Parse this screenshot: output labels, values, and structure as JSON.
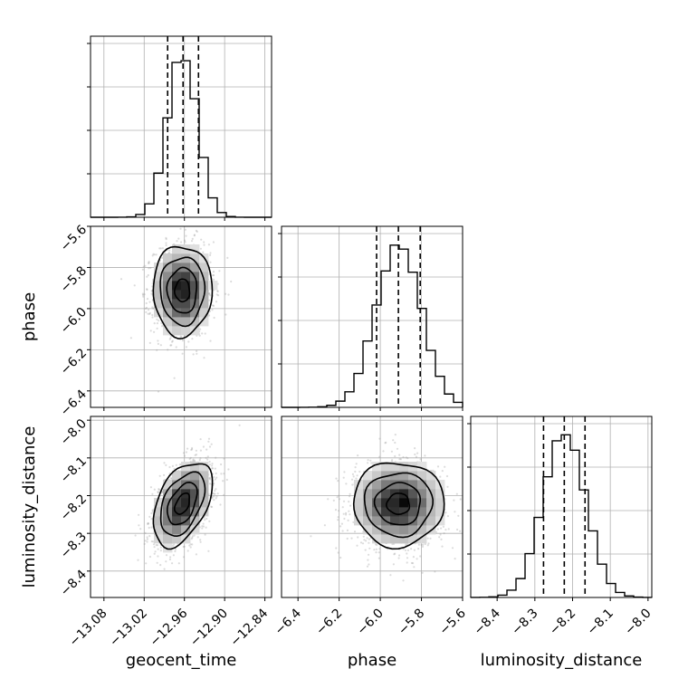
{
  "chart_data": {
    "type": "corner",
    "parameters": [
      {
        "key": "geocent_time",
        "label": "geocent_time",
        "mean": -12.963,
        "sd": 0.022,
        "range": [
          -13.1,
          -12.83
        ],
        "ticks": [
          -13.08,
          -13.02,
          -12.96,
          -12.9,
          -12.84
        ],
        "tick_labels": [
          "−13.08",
          "−13.02",
          "−12.96",
          "−12.90",
          "−12.84"
        ],
        "quantiles": [
          -12.985,
          -12.962,
          -12.939
        ]
      },
      {
        "key": "phase",
        "label": "phase",
        "mean": -5.912,
        "sd": 0.11,
        "range": [
          -6.48,
          -5.6
        ],
        "ticks": [
          -6.4,
          -6.2,
          -6.0,
          -5.8,
          -5.6
        ],
        "tick_labels": [
          "−6.4",
          "−6.2",
          "−6.0",
          "−5.8",
          "−5.6"
        ],
        "quantiles": [
          -6.018,
          -5.912,
          -5.806
        ]
      },
      {
        "key": "luminosity_distance",
        "label": "luminosity_distance",
        "mean": -8.222,
        "sd": 0.056,
        "range": [
          -8.47,
          -7.99
        ],
        "ticks": [
          -8.4,
          -8.3,
          -8.2,
          -8.1,
          -8.0
        ],
        "tick_labels": [
          "−8.4",
          "−8.3",
          "−8.2",
          "−8.1",
          "−8.0"
        ],
        "quantiles": [
          -8.277,
          -8.222,
          -8.167
        ]
      }
    ],
    "correlations": {
      "geocent_time|phase": 0.0,
      "geocent_time|luminosity_distance": 0.45,
      "phase|luminosity_distance": 0.0
    },
    "diag_bins": 20,
    "contour_levels_sigma": [
      0.5,
      1.0,
      1.5,
      2.0
    ],
    "grid": true,
    "colors": {
      "line": "#000000",
      "points": "#9a9a9a",
      "grid": "#b0b0b0"
    }
  }
}
